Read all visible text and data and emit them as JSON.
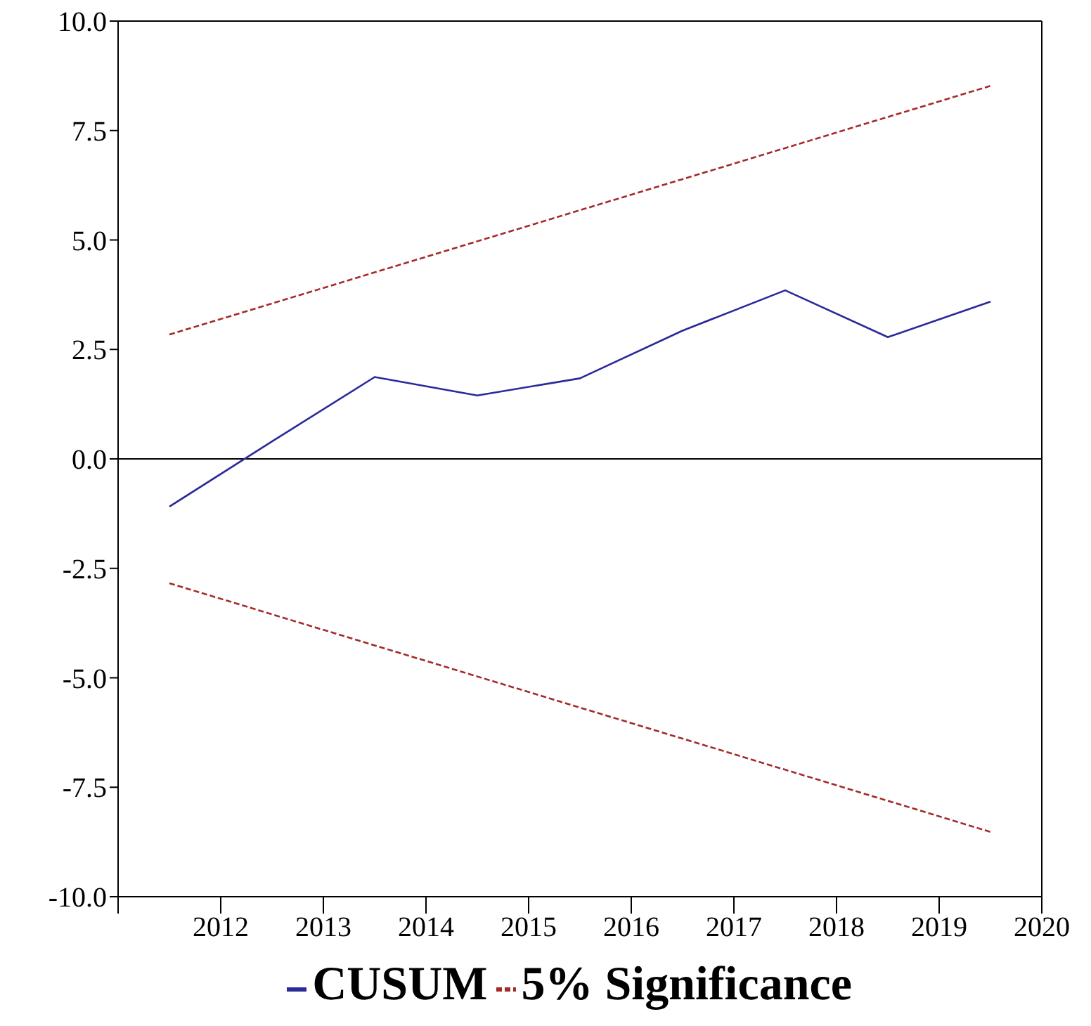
{
  "chart_data": {
    "type": "line",
    "x": [
      2011.5,
      2012.5,
      2013.5,
      2014.5,
      2015.5,
      2016.5,
      2017.5,
      2018.5,
      2019.5
    ],
    "series": [
      {
        "name": "CUSUM",
        "color": "#2a2a9a",
        "line_style": "solid",
        "values": [
          -1.09,
          0.4,
          1.87,
          1.45,
          1.84,
          2.93,
          3.85,
          2.78,
          3.59
        ]
      },
      {
        "name": "5% Significance",
        "color": "#a52a2a",
        "line_style": "dashed",
        "values": [
          2.84,
          3.55,
          4.26,
          4.97,
          5.68,
          6.39,
          7.1,
          7.81,
          8.52
        ]
      },
      {
        "color": "#a52a2a",
        "line_style": "dashed",
        "values": [
          -2.84,
          -3.55,
          -4.26,
          -4.97,
          -5.68,
          -6.39,
          -7.1,
          -7.81,
          -8.52
        ]
      }
    ],
    "xlim": [
      2011,
      2020
    ],
    "xticks": [
      {
        "value": 2011,
        "label": null
      },
      2012,
      2013,
      2014,
      2015,
      2016,
      2017,
      2018,
      2019,
      2020
    ],
    "ylim": [
      -10,
      10
    ],
    "yticks": [
      {
        "value": -10,
        "label": "-10.0"
      },
      {
        "value": -7.5,
        "label": "-7.5"
      },
      {
        "value": -5,
        "label": "-5.0"
      },
      {
        "value": -2.5,
        "label": "-2.5"
      },
      {
        "value": 0,
        "label": "0.0"
      },
      {
        "value": 2.5,
        "label": "2.5"
      },
      {
        "value": 5,
        "label": "5.0"
      },
      {
        "value": 7.5,
        "label": "7.5"
      },
      {
        "value": 10,
        "label": "10.0"
      }
    ],
    "ref_lines": [
      {
        "axis": "y",
        "value": 0,
        "color": "#000000"
      }
    ],
    "grid": false,
    "legend": "bottom",
    "marker": "none"
  }
}
